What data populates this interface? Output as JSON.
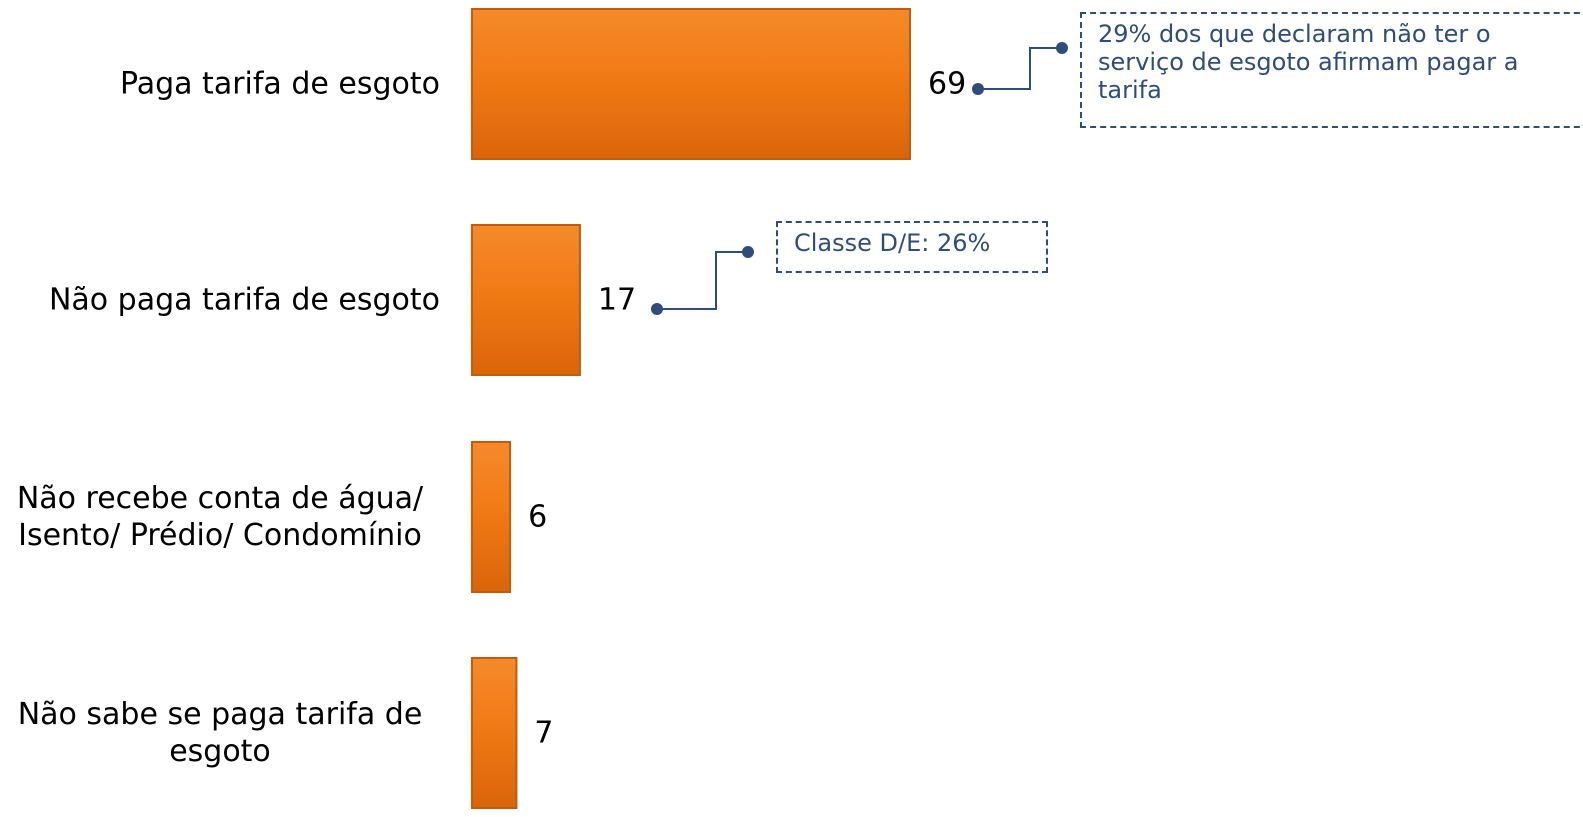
{
  "chart_data": {
    "type": "bar",
    "orientation": "horizontal",
    "categories": [
      "Paga tarifa de esgoto",
      "Não paga tarifa de esgoto",
      "Não recebe conta de água/ Isento/ Prédio/ Condomínio",
      "Não sabe se paga tarifa de esgoto"
    ],
    "values": [
      69,
      17,
      6,
      7
    ],
    "color": "#f07813",
    "annotations": [
      {
        "text": "29% dos que declaram não ter o serviço de esgoto afirmam pagar a tarifa",
        "category": 0
      },
      {
        "text": "Classe D/E: 26%",
        "category": 1
      }
    ]
  }
}
